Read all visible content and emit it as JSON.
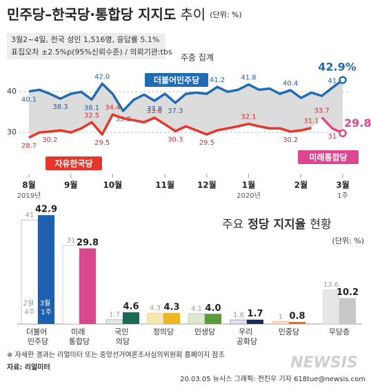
{
  "header": {
    "title": "민주당–한국당·통합당 지지도",
    "title_suffix": "추이",
    "unit": "(단위: %)",
    "notes": [
      "3월2~4일, 전국 성인 1,516명, 응답률 5.1%",
      "표집오차 ±2.5%p(95%신뢰수준) / 의뢰기관:tbs"
    ],
    "tag": "주중 집계"
  },
  "chart_data": [
    {
      "type": "line",
      "x": [
        0,
        1,
        2,
        3,
        4,
        5,
        6,
        7,
        8,
        9,
        10,
        11,
        12,
        13,
        14,
        15,
        16,
        17,
        18,
        19,
        20,
        21,
        22,
        23,
        24,
        25,
        26,
        27,
        28,
        29,
        30
      ],
      "xlim": [
        0,
        30
      ],
      "xticks": [
        {
          "value": 0,
          "label": "8월"
        },
        {
          "value": 4,
          "label": "9월"
        },
        {
          "value": 8,
          "label": "10월"
        },
        {
          "value": 13,
          "label": "11월"
        },
        {
          "value": 17,
          "label": "12월"
        },
        {
          "value": 21,
          "label": "1월"
        },
        {
          "value": 26,
          "label": "2월"
        },
        {
          "value": 30,
          "label": "3월"
        }
      ],
      "x_notes": [
        {
          "x": 0,
          "text": "2019년"
        },
        {
          "x": 21,
          "text": "2020년"
        },
        {
          "x": 30,
          "text": "1주"
        }
      ],
      "ylim": [
        20,
        47.5
      ],
      "yticks": [
        30,
        40
      ],
      "grid": true,
      "series": [
        {
          "name": "더불어민주당",
          "color": "#1f6bb5",
          "values": [
            40.1,
            40.5,
            39.5,
            38.3,
            39.5,
            40.0,
            38.1,
            42.0,
            39.5,
            35.3,
            38.0,
            39.3,
            37.8,
            39.5,
            37.3,
            39.5,
            39.8,
            39.5,
            41.2,
            40.0,
            40.5,
            41.8,
            40.5,
            40.8,
            39.5,
            40.4,
            38.5,
            39.8,
            39.0,
            41,
            42.9
          ],
          "value_labels": [
            "40.1",
            null,
            null,
            "38.3",
            null,
            null,
            "38.1",
            "42.0",
            null,
            "35.3",
            null,
            null,
            "37.8",
            null,
            "37.3",
            null,
            null,
            null,
            "41.2",
            null,
            null,
            "41.8",
            null,
            null,
            null,
            "40.4",
            null,
            null,
            null,
            "41",
            "42.9%"
          ]
        },
        {
          "name": "자유한국당",
          "color": "#e8352b",
          "values": [
            28.7,
            30.0,
            30.2,
            30.5,
            30.0,
            31.0,
            32.5,
            29.5,
            34.4,
            33.5,
            33.0,
            32.5,
            33.6,
            32.0,
            30.3,
            31.5,
            30.5,
            29.5,
            30.5,
            31.0,
            31.5,
            32.1,
            31.5,
            31.0,
            31.0,
            30.2,
            30.5,
            31.1,
            null,
            null,
            null
          ],
          "value_labels": [
            "28.7",
            null,
            "30.2",
            null,
            null,
            null,
            "32.5",
            "29.5",
            "34.4",
            null,
            null,
            null,
            "33.6",
            null,
            "30.3",
            null,
            null,
            "29.5",
            null,
            null,
            null,
            "32.1",
            null,
            null,
            null,
            "30.2",
            null,
            "31.1",
            null,
            null,
            null
          ]
        },
        {
          "name": "미래통합당",
          "color": "#e0468f",
          "values": [
            null,
            null,
            null,
            null,
            null,
            null,
            null,
            null,
            null,
            null,
            null,
            null,
            null,
            null,
            null,
            null,
            null,
            null,
            null,
            null,
            null,
            null,
            null,
            null,
            null,
            null,
            null,
            null,
            33.7,
            31,
            29.8
          ],
          "value_labels": [
            null,
            null,
            null,
            null,
            null,
            null,
            null,
            null,
            null,
            null,
            null,
            null,
            null,
            null,
            null,
            null,
            null,
            null,
            null,
            null,
            null,
            null,
            null,
            null,
            null,
            null,
            null,
            null,
            "33.7",
            "31",
            "29.8%"
          ]
        }
      ]
    },
    {
      "type": "bar",
      "title": "주요",
      "title_bold": "정당 지지율",
      "title_suffix": "현황",
      "unit": "(단위: %)",
      "categories": [
        "더불어 민주당",
        "미래 통합당",
        "국민 의당",
        "정의당",
        "민생당",
        "우리 공화당",
        "민중당",
        "무당층"
      ],
      "series": [
        {
          "name": "2월 4주",
          "colors": [
            "#ffffff",
            "#ffffff",
            "#e6e6e6",
            "#f6e6b3",
            "#dfe8cf",
            "#e1e3ea",
            "#f6e0d4",
            "#e6e6e6"
          ],
          "values": [
            41,
            31,
            1.7,
            4.3,
            4.1,
            1.6,
            1,
            13.6
          ]
        },
        {
          "name": "3월 1주",
          "colors": [
            "#1f5fb0",
            "#d9488e",
            "#1a6b55",
            "#f0b323",
            "#5d9a3c",
            "#1d2a5a",
            "#f06a20",
            "#c8c8c8"
          ],
          "values": [
            42.9,
            29.8,
            4.6,
            4.3,
            4.0,
            1.7,
            0.8,
            10.2
          ],
          "value_labels": [
            "42.9",
            "29.8",
            "4.6",
            "4.3",
            "4.0",
            "1.7",
            "0.8",
            "10.2"
          ]
        }
      ]
    }
  ],
  "footer": {
    "note": "※ 자세한 결과는 리얼미터 또는 중앙선거여론조사심의위원회 홈페이지 참조",
    "source": "자료: 리얼미터",
    "credit": "20.03.05 뉴시스 그래픽: 전진우 기자 618tue@newsis.com",
    "watermark": "NEWSIS"
  }
}
